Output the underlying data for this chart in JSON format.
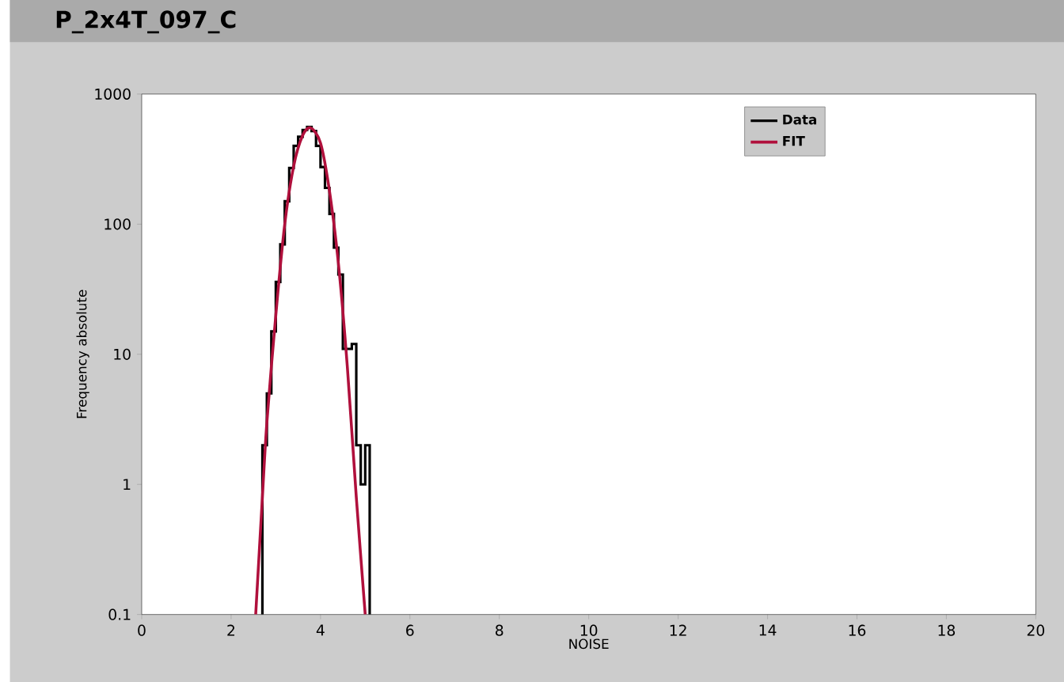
{
  "chart_data": {
    "type": "histogram",
    "title": "P_2x4T_097_C",
    "xlabel": "NOISE",
    "ylabel": "Frequency absolute",
    "series": [
      {
        "name": "Data",
        "type": "histogram",
        "color": "#000000",
        "bins": [
          2.7,
          2.8,
          2.9,
          3.0,
          3.1,
          3.2,
          3.3,
          3.4,
          3.5,
          3.6,
          3.7,
          3.8,
          3.9,
          4.0,
          4.1,
          4.2,
          4.3,
          4.4,
          4.5,
          4.6,
          4.7,
          4.8,
          4.9,
          5.0,
          5.1
        ],
        "values": [
          2,
          5,
          15,
          36,
          70,
          150,
          270,
          400,
          470,
          530,
          560,
          520,
          400,
          275,
          190,
          120,
          66,
          41,
          11,
          11,
          12,
          2,
          1,
          2
        ]
      },
      {
        "name": "FIT",
        "type": "line",
        "color": "#b0103c",
        "x": [
          2.55,
          2.7,
          2.8,
          3.0,
          3.2,
          3.4,
          3.6,
          3.78,
          4.0,
          4.2,
          4.4,
          4.6,
          4.8,
          5.0
        ],
        "values": [
          0.1,
          0.8,
          3,
          20,
          100,
          280,
          480,
          550,
          420,
          180,
          50,
          8,
          0.8,
          0.1
        ]
      }
    ],
    "xlim": [
      0,
      20
    ],
    "ylim": [
      0.1,
      1000
    ],
    "xticks": [
      0,
      2,
      4,
      6,
      8,
      10,
      12,
      14,
      16,
      18,
      20
    ],
    "yticks": [
      0.1,
      1,
      10,
      100,
      1000
    ],
    "log": "y",
    "legend": "top right"
  }
}
